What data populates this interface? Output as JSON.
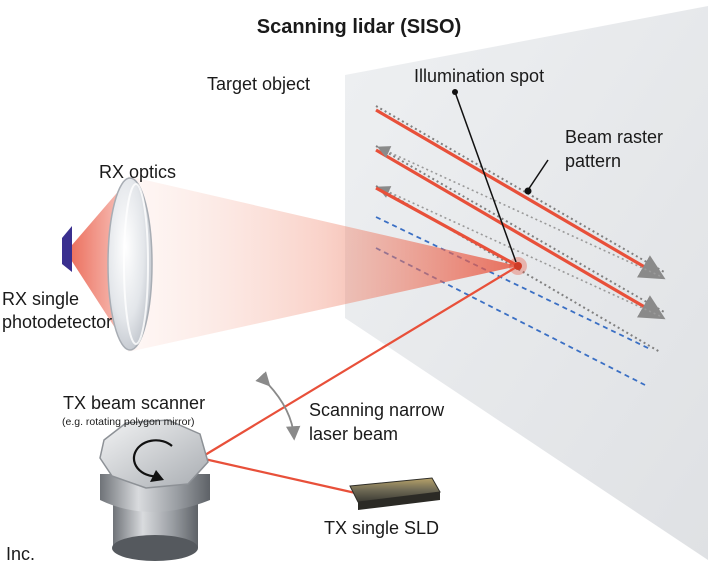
{
  "title": "Scanning lidar (SISO)",
  "labels": {
    "target_object": "Target object",
    "illumination_spot": "Illumination spot",
    "beam_raster": [
      "Beam raster",
      "pattern"
    ],
    "rx_optics": "RX optics",
    "rx_photodetector": [
      "RX single",
      "photodetector"
    ],
    "tx_beam_scanner": "TX beam scanner",
    "tx_beam_scanner_note": "(e.g. rotating polygon mirror)",
    "scanning_beam": [
      "Scanning narrow",
      "laser beam"
    ],
    "tx_sld": "TX single SLD",
    "credit": "Inc."
  },
  "colors": {
    "laser": "#e8503a",
    "laser_light": "#f7b9a8",
    "raster_dotted": "#808080",
    "raster_dashed": "#3a6fc4",
    "detector": "#3a2f8f",
    "panel": "#e9eaec"
  }
}
